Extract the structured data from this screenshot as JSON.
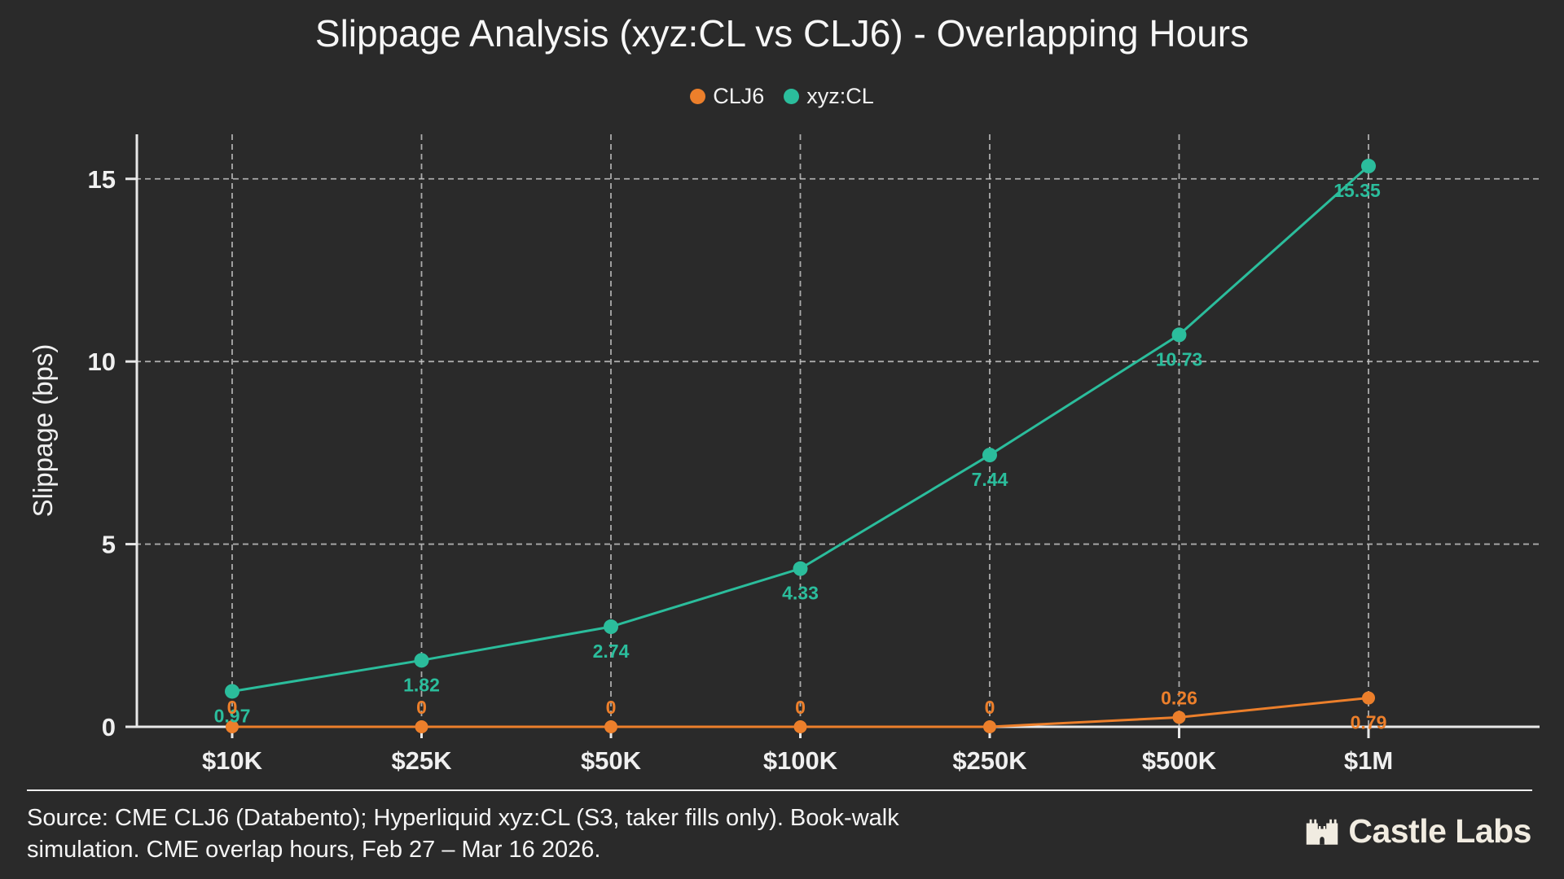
{
  "title": "Slippage Analysis (xyz:CL vs CLJ6) - Overlapping Hours",
  "colors": {
    "background": "#2a2a2a",
    "text": "#f2f2f2",
    "axis": "#e8e8e8",
    "grid": "#cccccc",
    "clj6_orange": "#ec7f2b",
    "xyzcl_teal": "#2bbd9c",
    "brand_cream": "#f1ece1"
  },
  "legend": {
    "items": [
      {
        "label": "CLJ6",
        "color": "#ec7f2b"
      },
      {
        "label": "xyz:CL",
        "color": "#2bbd9c"
      }
    ]
  },
  "chart_data": {
    "type": "line",
    "title": "Slippage Analysis (xyz:CL vs CLJ6) - Overlapping Hours",
    "categories": [
      "$10K",
      "$25K",
      "$50K",
      "$100K",
      "$250K",
      "$500K",
      "$1M"
    ],
    "series": [
      {
        "name": "CLJ6",
        "color": "#ec7f2b",
        "values": [
          0,
          0,
          0,
          0,
          0,
          0.26,
          0.79
        ],
        "point_labels": [
          "0",
          "0",
          "0",
          "0",
          "0",
          "0.26",
          "0.79"
        ],
        "label_positions": [
          "above",
          "above",
          "above",
          "above",
          "above",
          "above",
          "below"
        ]
      },
      {
        "name": "xyz:CL",
        "color": "#2bbd9c",
        "values": [
          0.97,
          1.82,
          2.74,
          4.33,
          7.44,
          10.73,
          15.35
        ],
        "point_labels": [
          "0.97",
          "1.82",
          "2.74",
          "4.33",
          "7.44",
          "10.73",
          "15.35"
        ],
        "label_positions": [
          "below",
          "below",
          "below",
          "below",
          "below",
          "below",
          "below"
        ]
      }
    ],
    "xlabel": "",
    "ylabel": "Slippage (bps)",
    "yticks": [
      0,
      5,
      10,
      15
    ],
    "ylim": [
      0,
      16.22
    ],
    "grid": true,
    "grid_style": "dashed",
    "legend_position": "top-center"
  },
  "footer": {
    "lines": [
      "Source: CME CLJ6 (Databento); Hyperliquid xyz:CL (S3, taker fills only). Book-walk",
      "simulation. CME overlap hours, Feb 27 – Mar 16 2026."
    ],
    "brand": "Castle Labs"
  }
}
